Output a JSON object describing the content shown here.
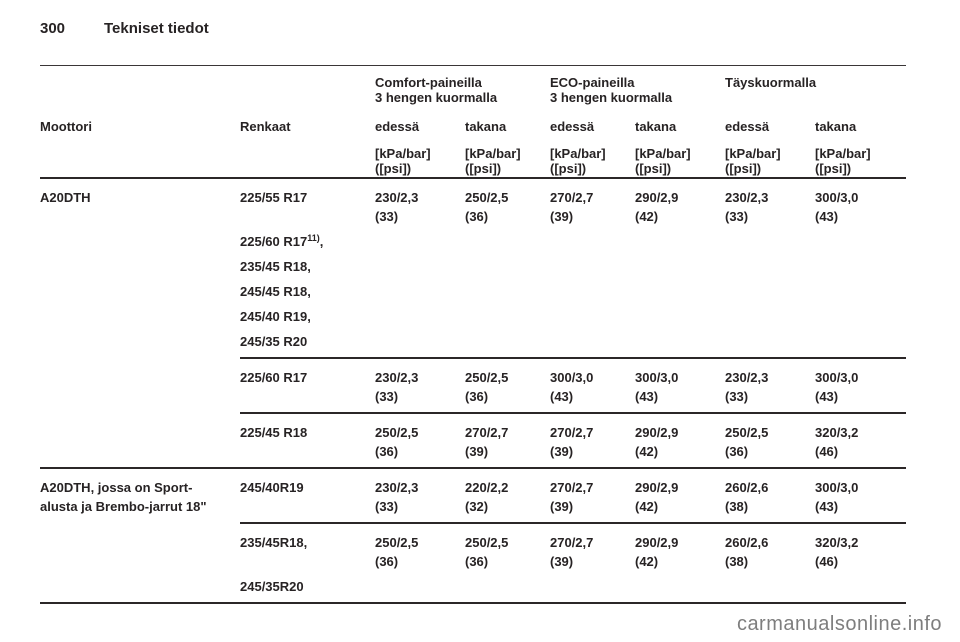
{
  "page": {
    "number": "300",
    "chapter": "Tekniset tiedot"
  },
  "watermark": "carmanualsonline.info",
  "table": {
    "groups": [
      {
        "line1": "Comfort-paineilla",
        "line2": "3 hengen kuormalla"
      },
      {
        "line1": "ECO-paineilla",
        "line2": "3 hengen kuormalla"
      },
      {
        "line1": "Täyskuormalla",
        "line2": ""
      }
    ],
    "col_engine": "Moottori",
    "col_tires": "Renkaat",
    "sub_front": "edessä",
    "sub_rear": "takana",
    "unit_line1": "[kPa/bar]",
    "unit_line2": "([psi])",
    "blocks": [
      {
        "engine_lines": [
          "A20DTH"
        ],
        "rows": [
          {
            "tires": [
              {
                "text": "225/55 R17"
              },
              {
                "blank": true
              },
              {
                "text": "225/60 R17",
                "sup": "11)",
                "tail": ","
              },
              {
                "text": "235/45 R18,"
              },
              {
                "text": "245/45 R18,"
              },
              {
                "text": "245/40 R19,"
              },
              {
                "text": "245/35 R20"
              }
            ],
            "values": [
              {
                "v": "230/2,3",
                "psi": "(33)"
              },
              {
                "v": "250/2,5",
                "psi": "(36)"
              },
              {
                "v": "270/2,7",
                "psi": "(39)"
              },
              {
                "v": "290/2,9",
                "psi": "(42)"
              },
              {
                "v": "230/2,3",
                "psi": "(33)"
              },
              {
                "v": "300/3,0",
                "psi": "(43)"
              }
            ]
          },
          {
            "tires": [
              {
                "text": "225/60 R17"
              }
            ],
            "values": [
              {
                "v": "230/2,3",
                "psi": "(33)"
              },
              {
                "v": "250/2,5",
                "psi": "(36)"
              },
              {
                "v": "300/3,0",
                "psi": "(43)"
              },
              {
                "v": "300/3,0",
                "psi": "(43)"
              },
              {
                "v": "230/2,3",
                "psi": "(33)"
              },
              {
                "v": "300/3,0",
                "psi": "(43)"
              }
            ]
          },
          {
            "tires": [
              {
                "text": "225/45 R18"
              }
            ],
            "values": [
              {
                "v": "250/2,5",
                "psi": "(36)"
              },
              {
                "v": "270/2,7",
                "psi": "(39)"
              },
              {
                "v": "270/2,7",
                "psi": "(39)"
              },
              {
                "v": "290/2,9",
                "psi": "(42)"
              },
              {
                "v": "250/2,5",
                "psi": "(36)"
              },
              {
                "v": "320/3,2",
                "psi": "(46)"
              }
            ]
          }
        ]
      },
      {
        "engine_lines": [
          "A20DTH, jossa on Sport-",
          "alusta ja Brembo-jarrut 18\""
        ],
        "rows": [
          {
            "tires": [
              {
                "text": "245/40R19"
              }
            ],
            "values": [
              {
                "v": "230/2,3",
                "psi": "(33)"
              },
              {
                "v": "220/2,2",
                "psi": "(32)"
              },
              {
                "v": "270/2,7",
                "psi": "(39)"
              },
              {
                "v": "290/2,9",
                "psi": "(42)"
              },
              {
                "v": "260/2,6",
                "psi": "(38)"
              },
              {
                "v": "300/3,0",
                "psi": "(43)"
              }
            ]
          },
          {
            "tires": [
              {
                "text": "235/45R18,"
              },
              {
                "blank": true
              },
              {
                "text": "245/35R20"
              }
            ],
            "values": [
              {
                "v": "250/2,5",
                "psi": "(36)"
              },
              {
                "v": "250/2,5",
                "psi": "(36)"
              },
              {
                "v": "270/2,7",
                "psi": "(39)"
              },
              {
                "v": "290/2,9",
                "psi": "(42)"
              },
              {
                "v": "260/2,6",
                "psi": "(38)"
              },
              {
                "v": "320/3,2",
                "psi": "(46)"
              }
            ]
          }
        ]
      }
    ]
  }
}
